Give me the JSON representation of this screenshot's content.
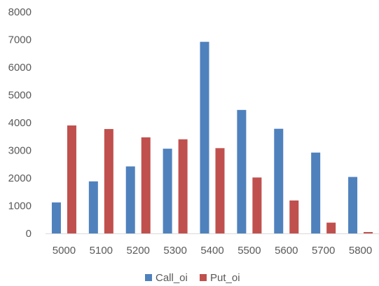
{
  "chart_data": {
    "type": "bar",
    "title": "",
    "xlabel": "",
    "ylabel": "",
    "categories": [
      "5000",
      "5100",
      "5200",
      "5300",
      "5400",
      "5500",
      "5600",
      "5700",
      "5800"
    ],
    "series": [
      {
        "name": "Call_oi",
        "color": "#4F81BD",
        "values": [
          1120,
          1880,
          2420,
          3060,
          6920,
          4460,
          3780,
          2920,
          2040
        ]
      },
      {
        "name": "Put_oi",
        "color": "#C0504D",
        "values": [
          3900,
          3770,
          3470,
          3400,
          3080,
          2020,
          1190,
          390,
          50
        ]
      }
    ],
    "y_ticks": [
      "0",
      "1000",
      "2000",
      "3000",
      "4000",
      "5000",
      "6000",
      "7000",
      "8000"
    ],
    "ylim": [
      0,
      8000
    ],
    "grid": false,
    "legend": "bottom"
  }
}
